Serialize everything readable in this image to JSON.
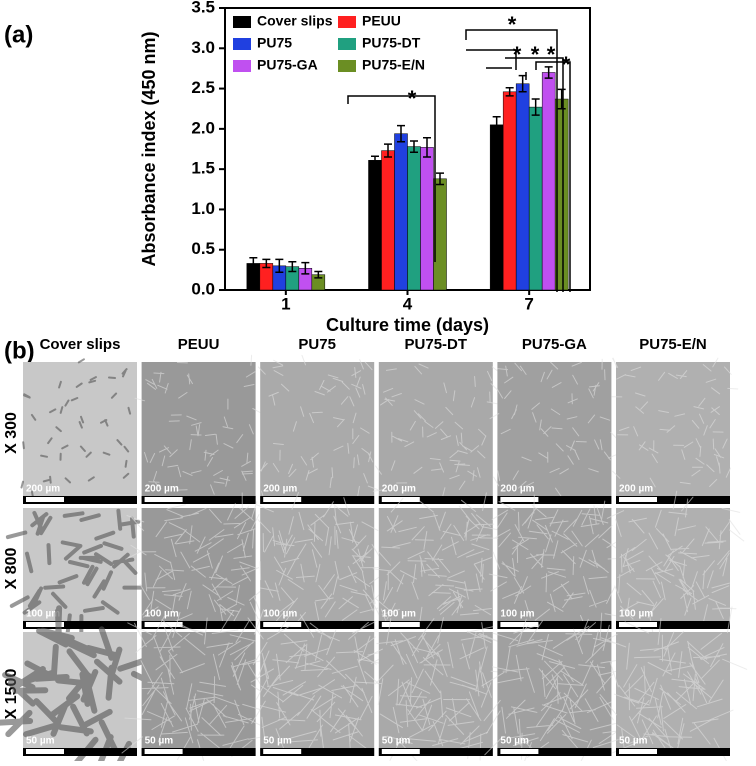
{
  "panel_a_label": "(a)",
  "chart_data": {
    "type": "bar",
    "x_label": "Culture time (days)",
    "y_label": "Absorbance index (450 nm)",
    "categories": [
      "1",
      "4",
      "7"
    ],
    "series": [
      {
        "name": "Cover slips",
        "color": "#000000",
        "values": [
          0.33,
          1.61,
          2.05
        ],
        "errors": [
          0.07,
          0.05,
          0.1
        ]
      },
      {
        "name": "PEUU",
        "color": "#ff2020",
        "values": [
          0.33,
          1.73,
          2.46
        ],
        "errors": [
          0.05,
          0.08,
          0.05
        ]
      },
      {
        "name": "PU75",
        "color": "#2040e0",
        "values": [
          0.3,
          1.94,
          2.56
        ],
        "errors": [
          0.08,
          0.1,
          0.1
        ]
      },
      {
        "name": "PU75-DT",
        "color": "#20a080",
        "values": [
          0.29,
          1.78,
          2.27
        ],
        "errors": [
          0.06,
          0.07,
          0.1
        ]
      },
      {
        "name": "PU75-GA",
        "color": "#c050f0",
        "values": [
          0.27,
          1.77,
          2.7
        ],
        "errors": [
          0.07,
          0.12,
          0.07
        ]
      },
      {
        "name": "PU75-E/N",
        "color": "#6b8e23",
        "values": [
          0.19,
          1.38,
          2.37
        ],
        "errors": [
          0.04,
          0.07,
          0.12
        ]
      }
    ],
    "ylim": [
      0,
      3.5
    ],
    "yticks": [
      {
        "value": 0,
        "label": "0.0"
      },
      0.5,
      {
        "value": 1,
        "label": "1.0"
      },
      1.5,
      {
        "value": 2,
        "label": "2.0"
      },
      2.5,
      {
        "value": 3,
        "label": "3.0"
      },
      3.5
    ],
    "legend": "upper-left",
    "annotations": [
      "*",
      "*",
      "*",
      "*",
      "*",
      "*"
    ]
  },
  "panel_b": {
    "label": "(b)",
    "columns": [
      "Cover slips",
      "PEUU",
      "PU75",
      "PU75-DT",
      "PU75-GA",
      "PU75-E/N"
    ],
    "rows": [
      {
        "label": "X 300",
        "scale_bar": "200 µm"
      },
      {
        "label": "X 800",
        "scale_bar": "100 µm"
      },
      {
        "label": "X 1500",
        "scale_bar": "50 µm"
      }
    ]
  }
}
